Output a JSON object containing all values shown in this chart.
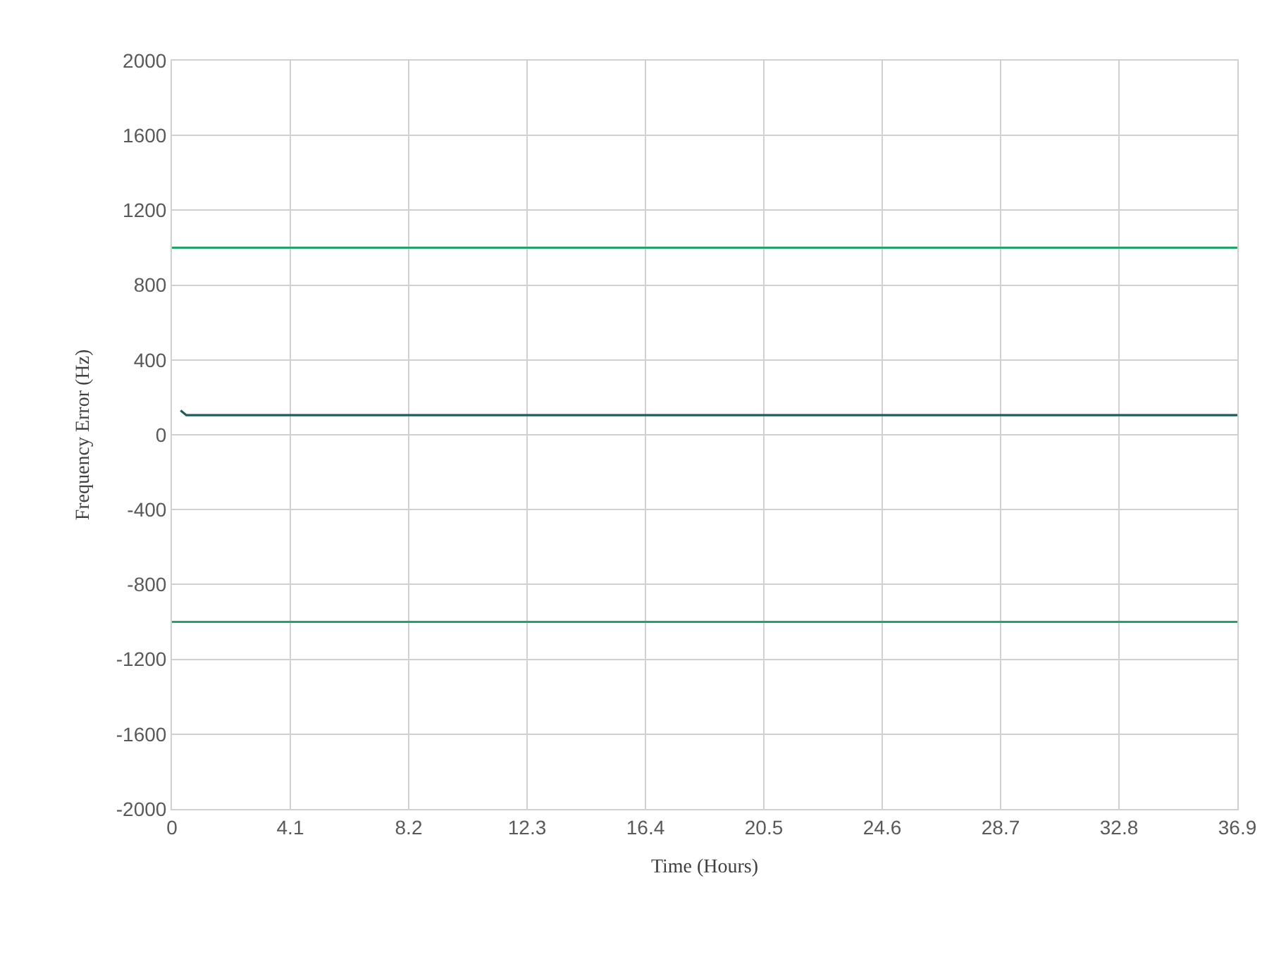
{
  "chart_data": {
    "type": "line",
    "xlabel": "Time (Hours)",
    "ylabel": "Frequency Error (Hz)",
    "x": [
      0.3,
      0.5,
      36.9
    ],
    "series": [
      {
        "color": "#1d5c5c",
        "values": [
          130,
          105,
          105
        ]
      }
    ],
    "ref_lines": [
      {
        "axis": "y",
        "value": 1000,
        "color": "#22a36b"
      },
      {
        "axis": "y",
        "value": -1000,
        "color": "#22a36b"
      }
    ],
    "xlim": [
      0,
      36.9
    ],
    "xticks": [
      0,
      4.1,
      8.2,
      12.3,
      16.4,
      20.5,
      24.6,
      28.7,
      32.8,
      36.9
    ],
    "ylim": [
      -2000,
      2000
    ],
    "yticks": [
      -2000,
      -1600,
      -1200,
      -800,
      -400,
      0,
      400,
      800,
      1200,
      1600,
      2000
    ],
    "grid": true,
    "marker": "none",
    "line_style": "solid"
  }
}
